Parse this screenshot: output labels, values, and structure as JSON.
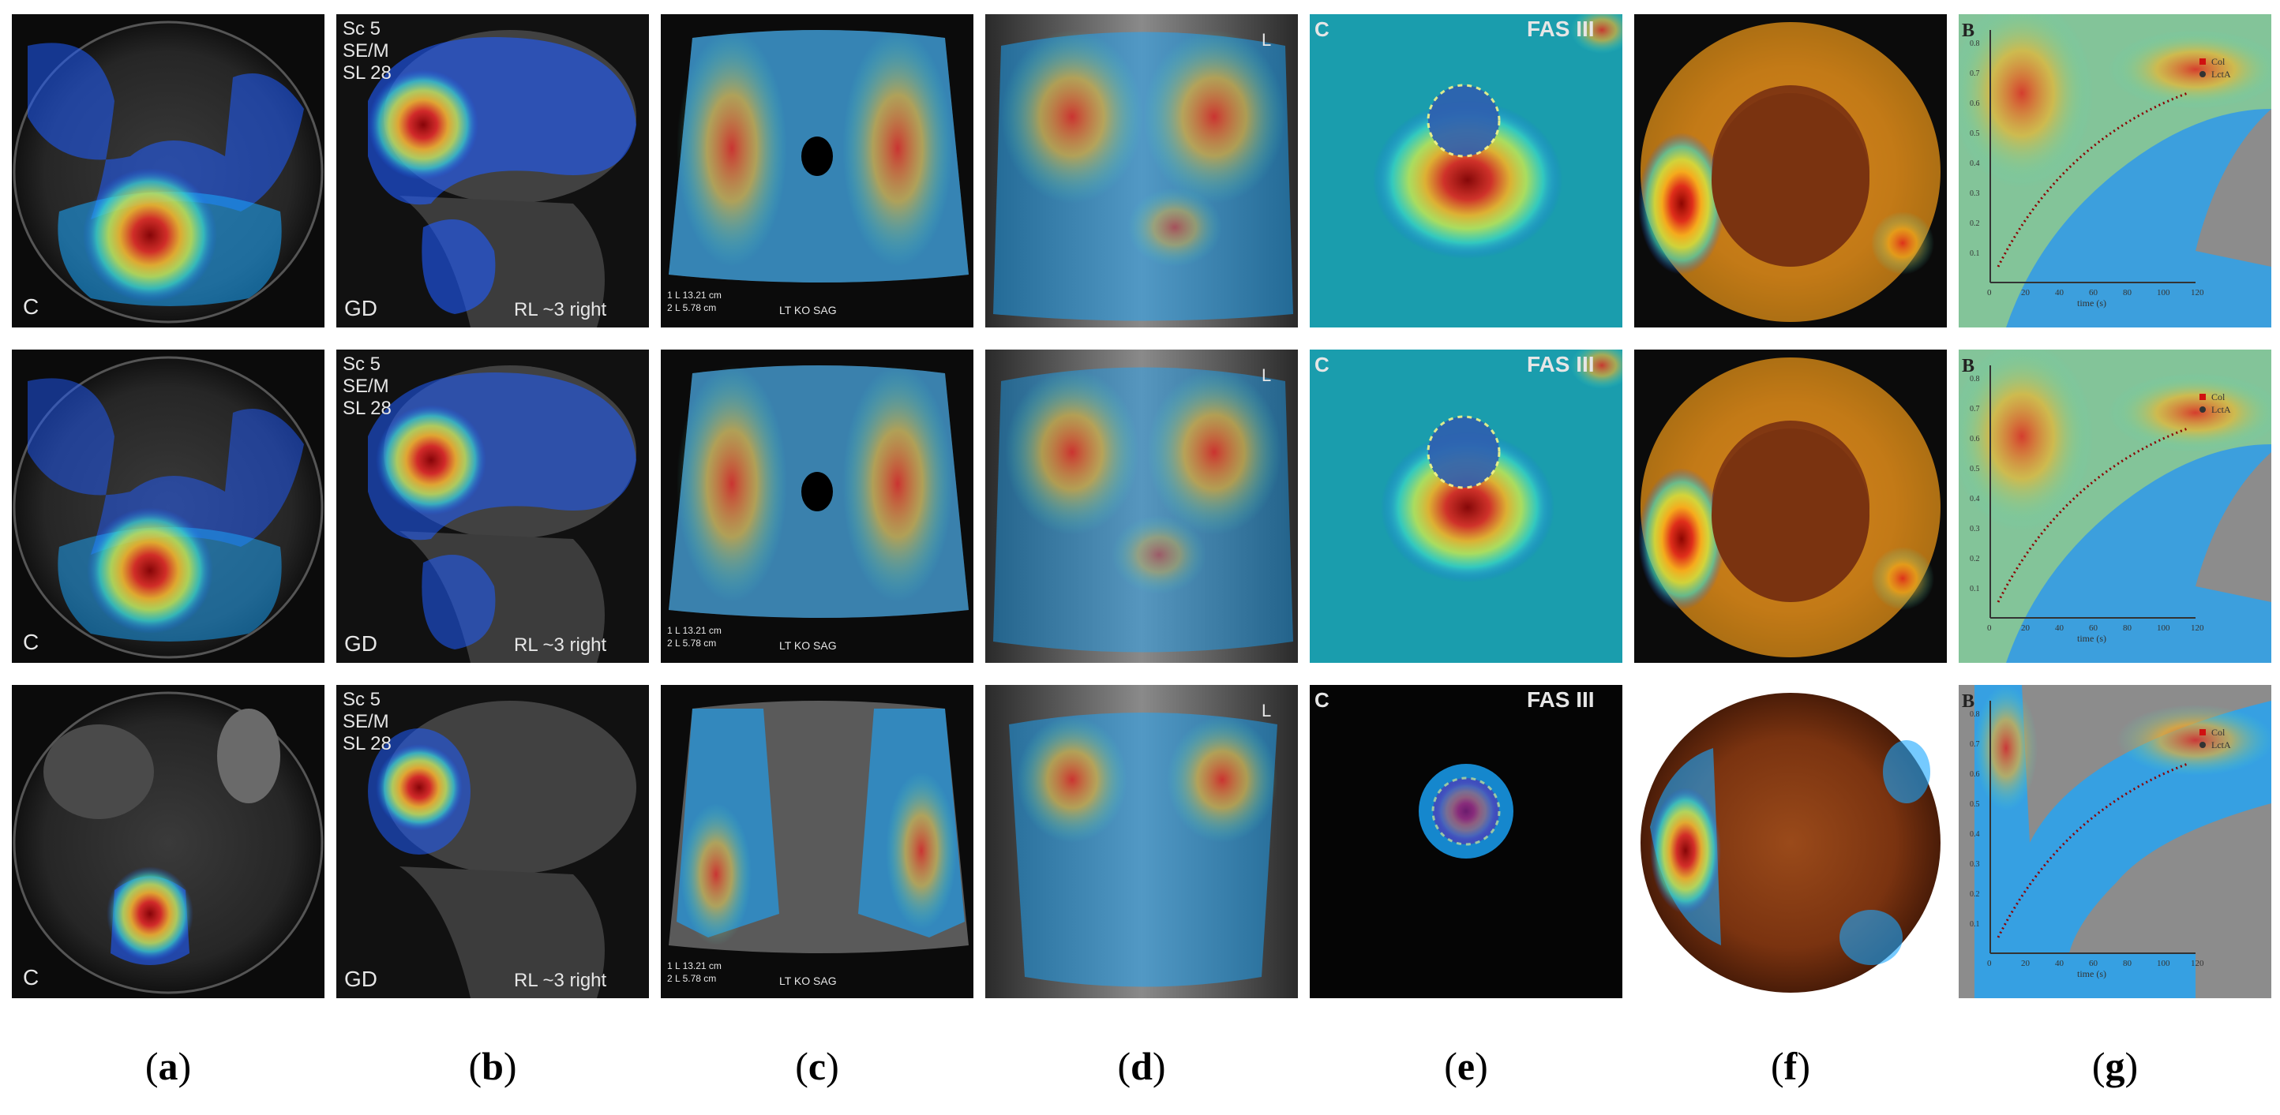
{
  "figure": {
    "panels": [
      {
        "id": "a",
        "caption": "a",
        "overlay": {
          "corner": "C"
        }
      },
      {
        "id": "b",
        "caption": "b",
        "overlay": {
          "line1": "Sc 5",
          "line2": "SE/M",
          "line3": "SL 28",
          "corner": "GD",
          "footer": "RL ~3 right"
        }
      },
      {
        "id": "c",
        "caption": "c",
        "overlay": {
          "footer": "LT KO SAG",
          "meas1": "1 L 13.21 cm",
          "meas2": "2 L 5.78 cm"
        }
      },
      {
        "id": "d",
        "caption": "d",
        "overlay": {
          "marker": "L"
        }
      },
      {
        "id": "e",
        "caption": "e",
        "overlay": {
          "corner": "C",
          "tag": "FAS III"
        }
      },
      {
        "id": "f",
        "caption": "f",
        "overlay": {}
      },
      {
        "id": "g",
        "caption": "g",
        "overlay": {
          "corner": "B",
          "legend1": "Col",
          "legend2": "LctA",
          "xlabel": "time (s)",
          "xticks": [
            "0",
            "20",
            "40",
            "60",
            "80",
            "100",
            "120"
          ],
          "yticks": [
            "0.8",
            "0.7",
            "0.6",
            "0.5",
            "0.4",
            "0.3",
            "0.2",
            "0.1"
          ]
        }
      }
    ],
    "rows": 3,
    "colormap": [
      "#1f3cff",
      "#19a7ff",
      "#3fe0c8",
      "#d9f246",
      "#ffb41e",
      "#e3261b",
      "#8b0000"
    ]
  }
}
